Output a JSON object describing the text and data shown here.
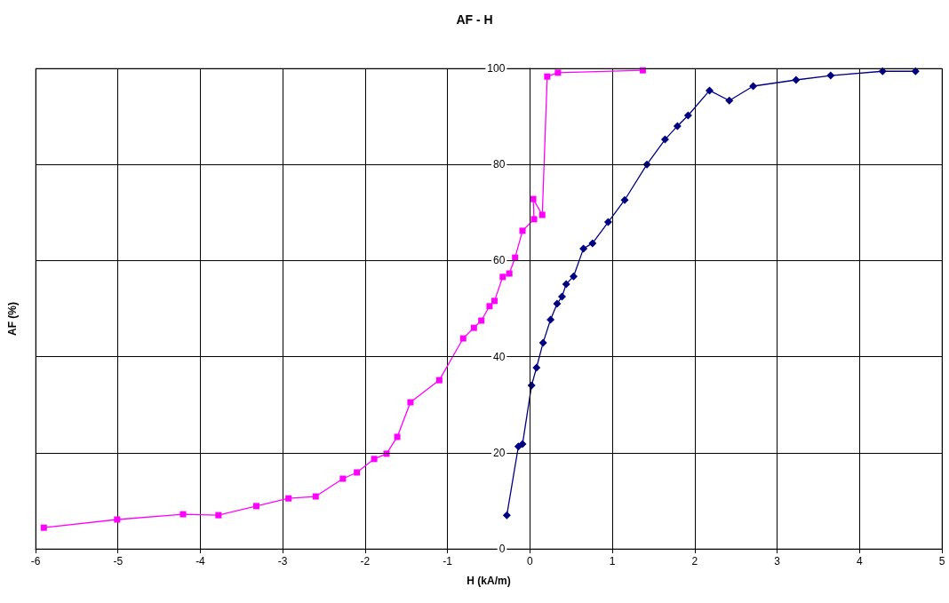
{
  "chart_data": {
    "type": "line",
    "title": "AF - H",
    "xlabel": "H (kA/m)",
    "ylabel": "AF (%)",
    "xlim": [
      -6,
      5
    ],
    "xticks": [
      -6,
      -5,
      -4,
      -3,
      -2,
      -1,
      0,
      1,
      2,
      3,
      4,
      5
    ],
    "ylim": [
      0,
      100
    ],
    "yticks": [
      0,
      20,
      40,
      60,
      80,
      100
    ],
    "grid": true,
    "series": [
      {
        "color": "#ff00ff",
        "marker": "square",
        "x": [
          -5.9,
          -5.01,
          -4.21,
          -3.78,
          -3.32,
          -2.93,
          -2.6,
          -2.27,
          -2.1,
          -1.89,
          -1.74,
          -1.61,
          -1.45,
          -1.1,
          -0.81,
          -0.68,
          -0.59,
          -0.49,
          -0.43,
          -0.33,
          -0.25,
          -0.18,
          -0.09,
          0.05,
          0.04,
          0.15,
          0.21,
          0.34,
          1.37
        ],
        "values": [
          4.4,
          6.1,
          7.2,
          7.0,
          8.9,
          10.5,
          10.9,
          14.6,
          15.9,
          18.7,
          19.8,
          23.3,
          30.5,
          35.1,
          43.8,
          46.0,
          47.5,
          50.5,
          51.6,
          56.6,
          57.3,
          60.6,
          66.2,
          68.6,
          72.8,
          69.5,
          98.3,
          99.1,
          99.6
        ]
      },
      {
        "color": "#000080",
        "marker": "diamond",
        "x": [
          -0.28,
          -0.14,
          -0.09,
          0.02,
          0.08,
          0.16,
          0.25,
          0.33,
          0.39,
          0.44,
          0.53,
          0.65,
          0.76,
          0.95,
          1.15,
          1.42,
          1.64,
          1.79,
          1.92,
          2.18,
          2.42,
          2.71,
          3.23,
          3.65,
          4.28,
          4.68
        ],
        "values": [
          7.0,
          21.3,
          21.8,
          34.0,
          37.7,
          42.9,
          47.7,
          51.0,
          52.5,
          55.1,
          56.7,
          62.5,
          63.6,
          68.0,
          72.6,
          80.0,
          85.2,
          88.0,
          90.2,
          95.4,
          93.3,
          96.3,
          97.6,
          98.5,
          99.4,
          99.4
        ]
      }
    ]
  }
}
